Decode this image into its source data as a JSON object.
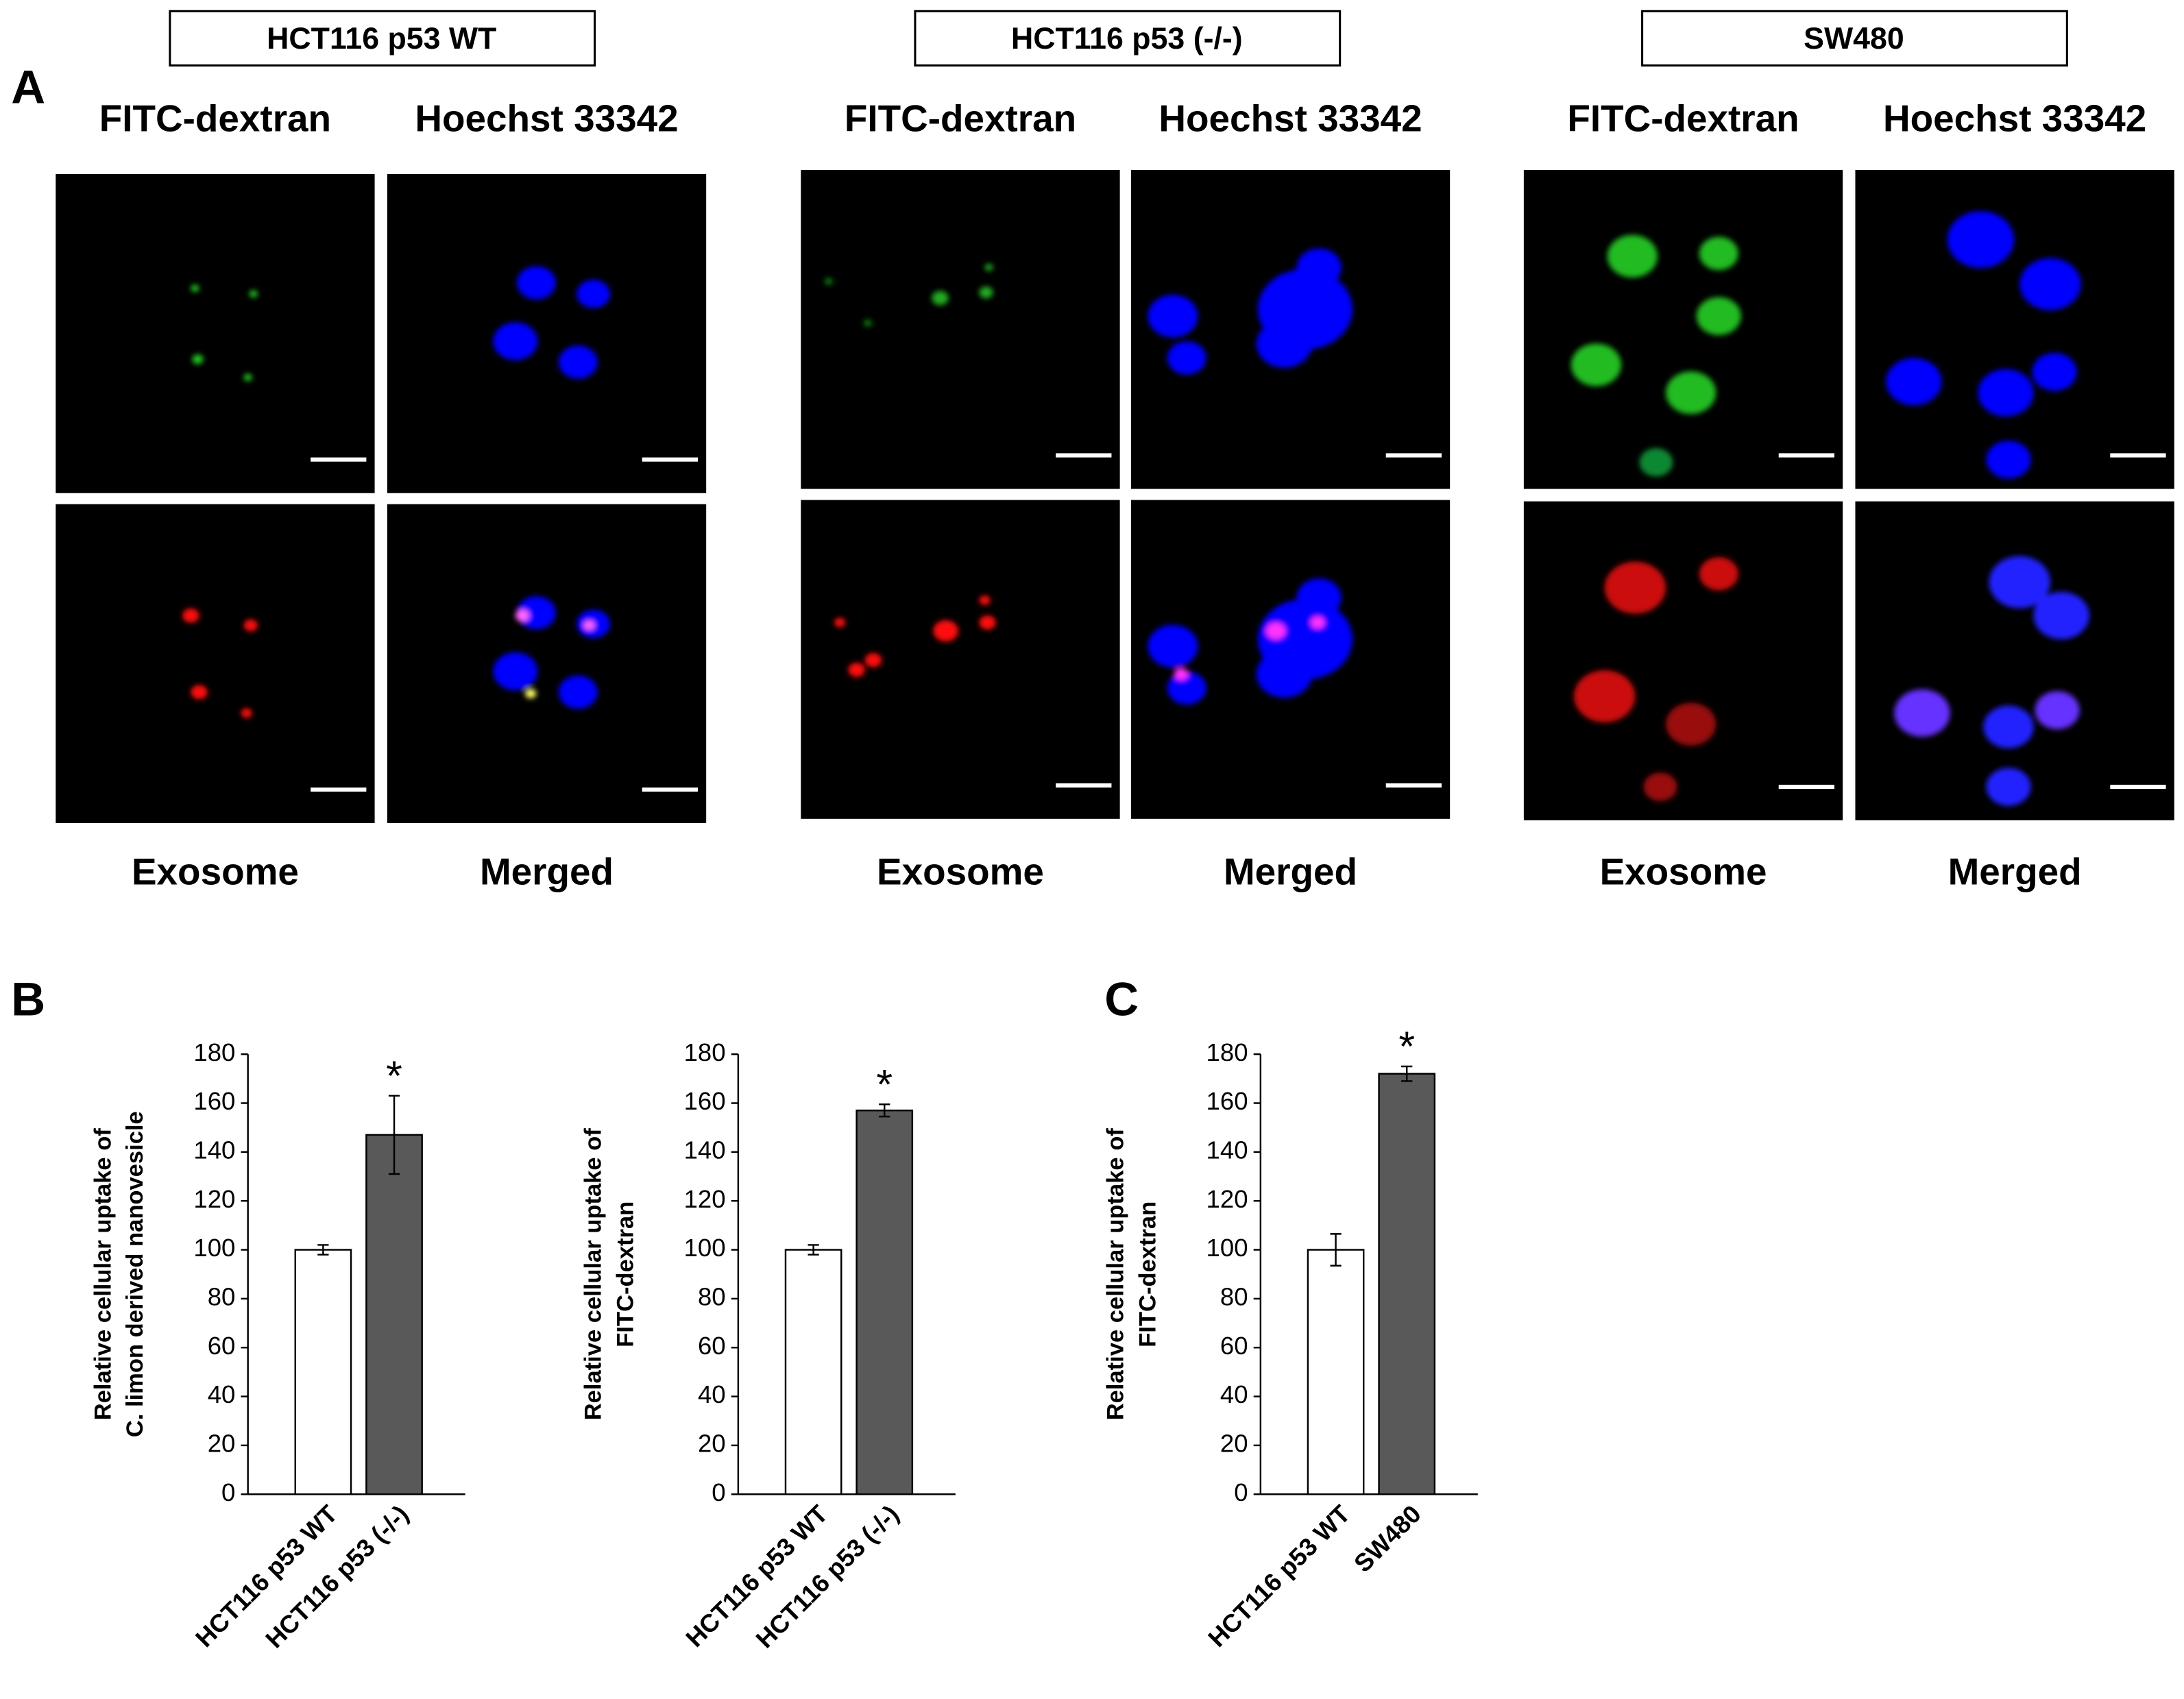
{
  "panel_labels": [
    "A",
    "B",
    "C"
  ],
  "panel_a": {
    "groups": [
      {
        "title": "HCT116 p53 WT",
        "channels": [
          "FITC-dextran",
          "Hoechst 33342"
        ],
        "bottom_labels": [
          "Exosome",
          "Merged"
        ]
      },
      {
        "title": "HCT116 p53 (-/-)",
        "channels": [
          "FITC-dextran",
          "Hoechst 33342"
        ],
        "bottom_labels": [
          "Exosome",
          "Merged"
        ]
      },
      {
        "title": "SW480",
        "channels": [
          "FITC-dextran",
          "Hoechst 33342"
        ],
        "bottom_labels": [
          "Exosome",
          "Merged"
        ]
      }
    ]
  },
  "chart_data": [
    {
      "type": "bar",
      "ylabel": [
        "Relative cellular uptake of",
        "C. limon derived nanovesicle"
      ],
      "categories": [
        "HCT116 p53 WT",
        "HCT116 p53 (-/-)"
      ],
      "values": [
        100,
        147
      ],
      "errors": [
        2,
        16
      ],
      "colors": [
        "#ffffff",
        "#595959"
      ],
      "value_annotations": [
        null,
        "*"
      ],
      "ylim": [
        0,
        180
      ],
      "yticks": [
        0,
        20,
        40,
        60,
        80,
        100,
        120,
        140,
        160,
        180
      ]
    },
    {
      "type": "bar",
      "ylabel": [
        "Relative cellular uptake of",
        "FITC-dextran"
      ],
      "categories": [
        "HCT116 p53 WT",
        "HCT116 p53 (-/-)"
      ],
      "values": [
        100,
        157
      ],
      "errors": [
        2,
        2.5
      ],
      "colors": [
        "#ffffff",
        "#595959"
      ],
      "value_annotations": [
        null,
        "*"
      ],
      "ylim": [
        0,
        180
      ],
      "yticks": [
        0,
        20,
        40,
        60,
        80,
        100,
        120,
        140,
        160,
        180
      ]
    },
    {
      "type": "bar",
      "ylabel": [
        "Relative cellular uptake of",
        "FITC-dextran"
      ],
      "categories": [
        "HCT116 p53 WT",
        "SW480"
      ],
      "values": [
        100,
        172
      ],
      "errors": [
        6.5,
        3
      ],
      "colors": [
        "#ffffff",
        "#595959"
      ],
      "value_annotations": [
        null,
        "*"
      ],
      "ylim": [
        0,
        180
      ],
      "yticks": [
        0,
        20,
        40,
        60,
        80,
        100,
        120,
        140,
        160,
        180
      ]
    }
  ]
}
